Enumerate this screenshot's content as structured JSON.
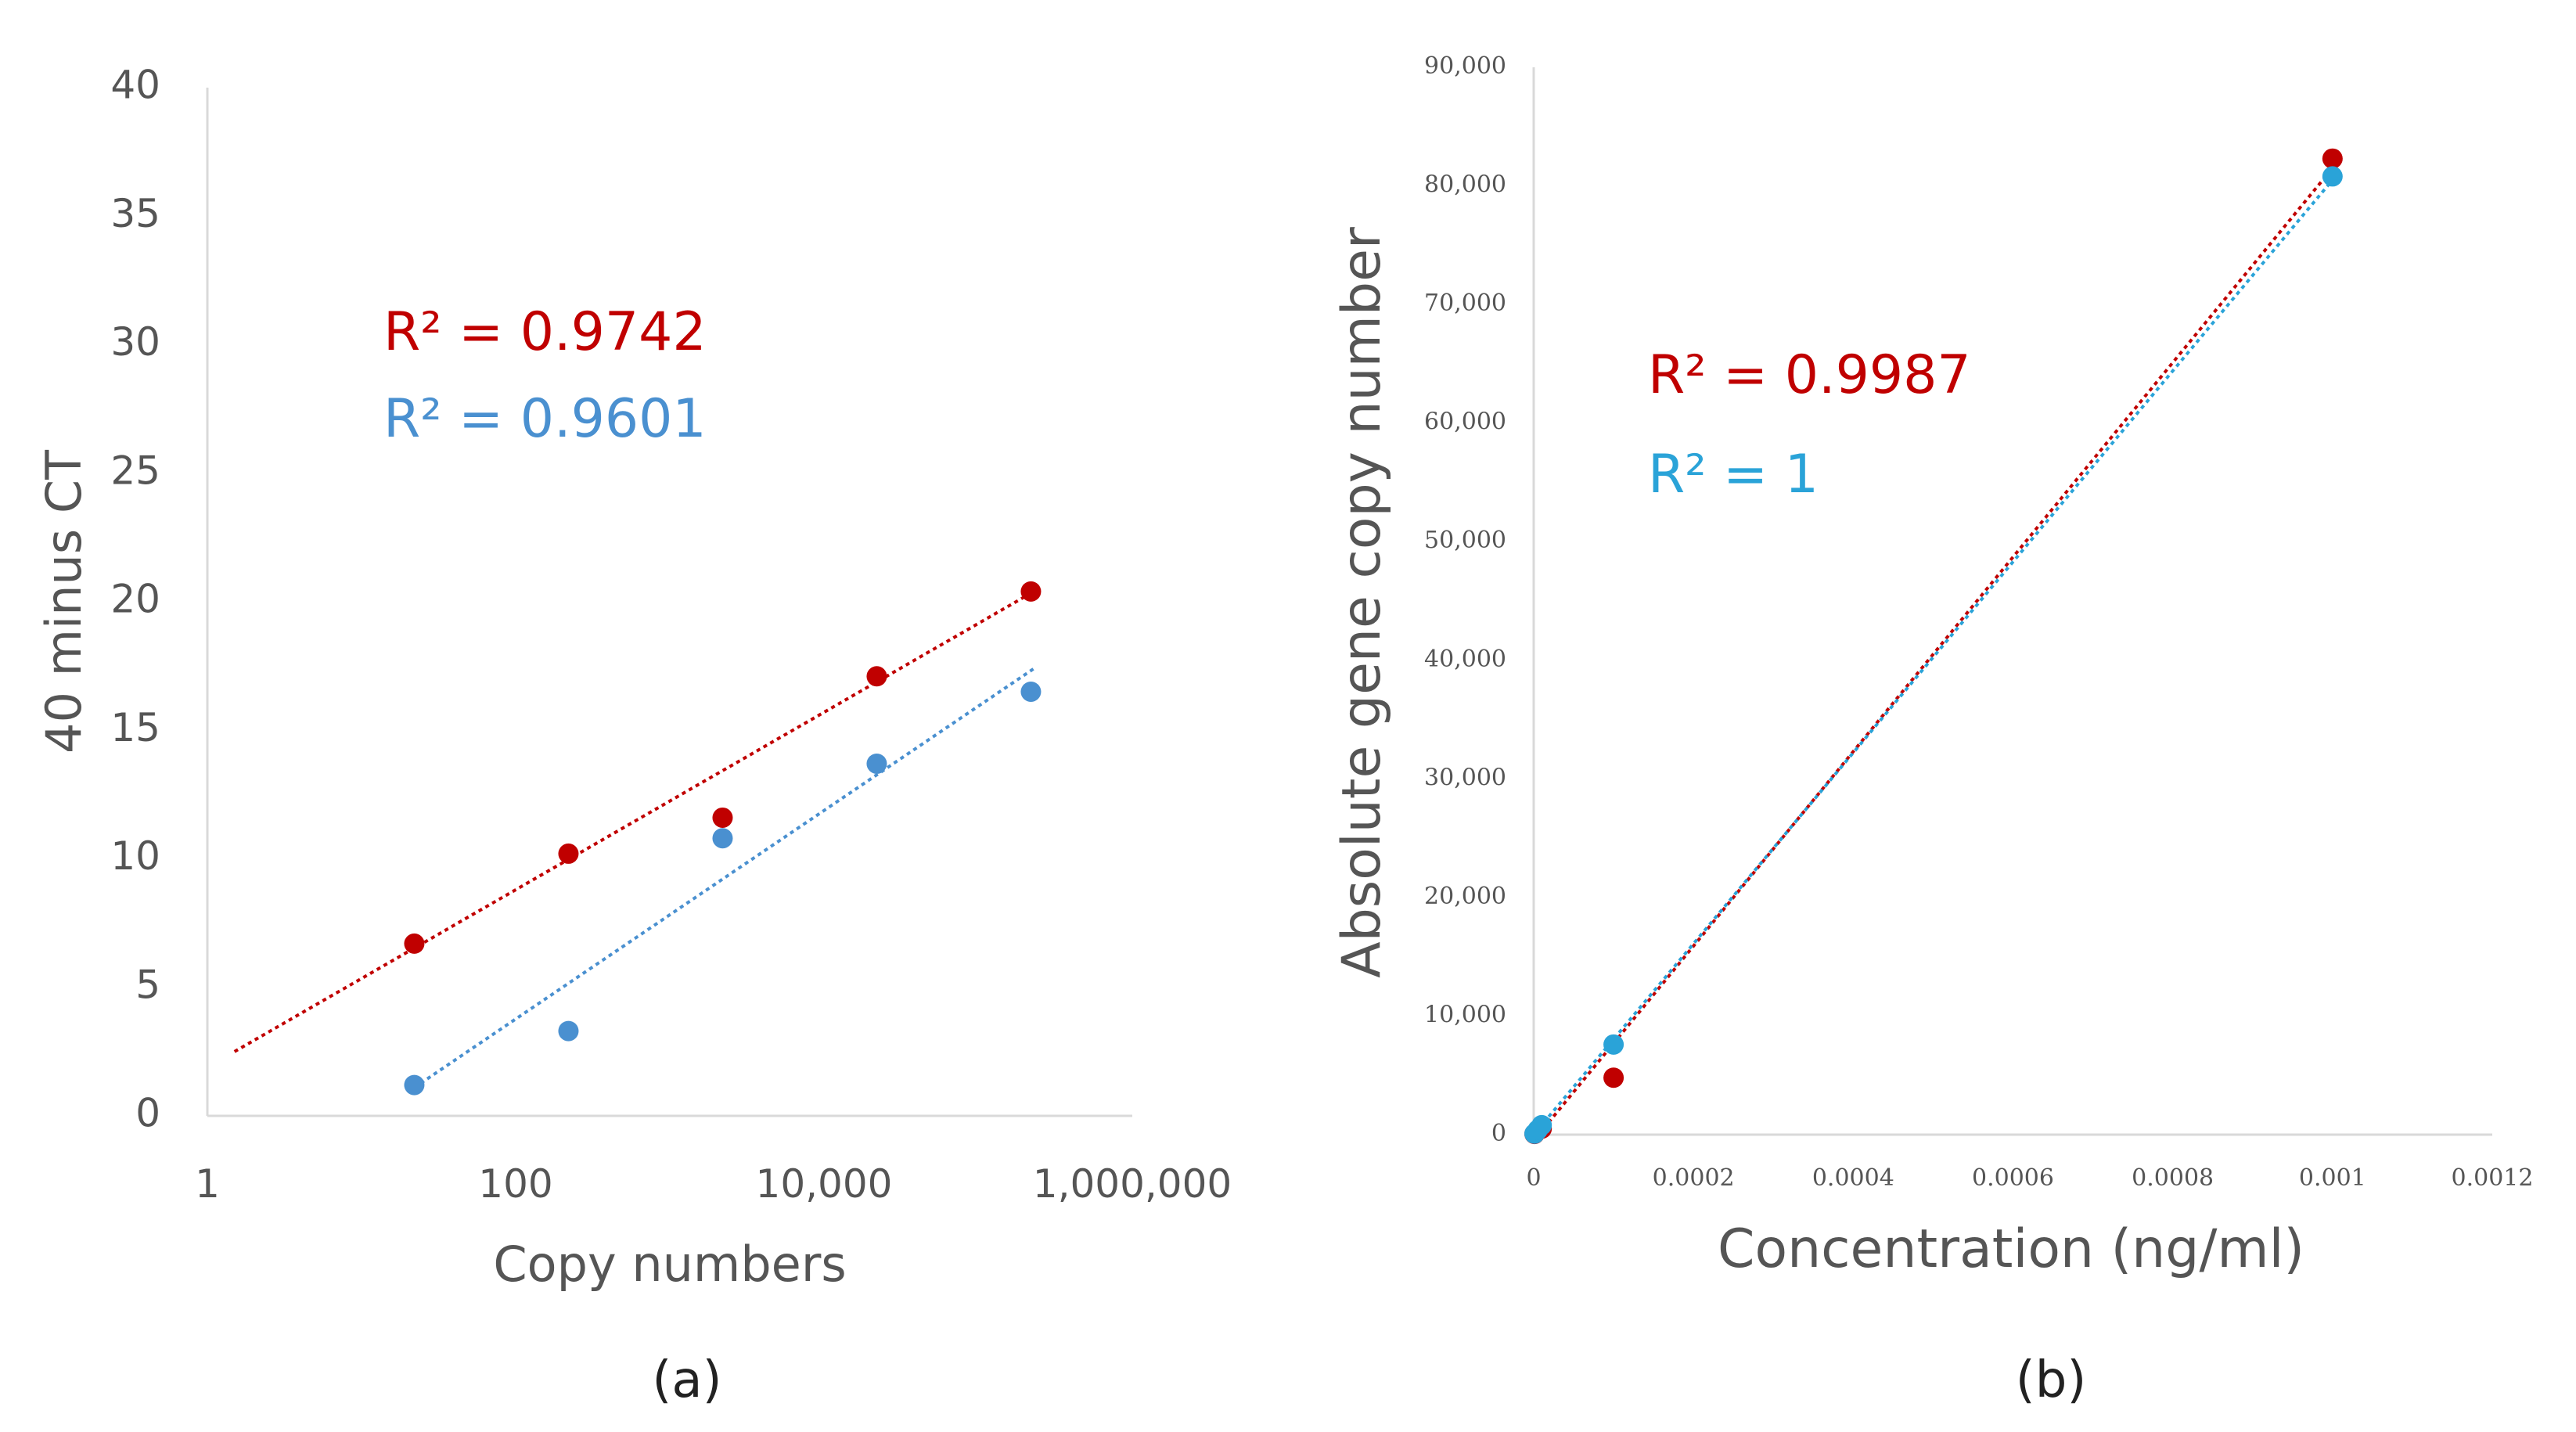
{
  "chart_data": [
    {
      "type": "scatter",
      "panel": "a",
      "caption": "(a)",
      "xlabel": "Copy numbers",
      "ylabel": "40 minus CT",
      "xscale": "log",
      "xlim": [
        1,
        1000000
      ],
      "ylim": [
        0,
        40
      ],
      "xticks": [
        {
          "value": 1,
          "label": "1"
        },
        {
          "value": 100,
          "label": "100"
        },
        {
          "value": 10000,
          "label": "10,000"
        },
        {
          "value": 1000000,
          "label": "1,000,000"
        }
      ],
      "yticks": [
        {
          "value": 0,
          "label": "0"
        },
        {
          "value": 5,
          "label": "5"
        },
        {
          "value": 10,
          "label": "10"
        },
        {
          "value": 15,
          "label": "15"
        },
        {
          "value": 20,
          "label": "20"
        },
        {
          "value": 25,
          "label": "25"
        },
        {
          "value": 30,
          "label": "30"
        },
        {
          "value": 35,
          "label": "35"
        },
        {
          "value": 40,
          "label": "40"
        }
      ],
      "series": [
        {
          "name": "red",
          "color": "#c00000",
          "x": [
            22,
            220,
            2200,
            22000,
            220000
          ],
          "y": [
            6.7,
            10.2,
            11.6,
            17.1,
            20.4
          ],
          "trendline": {
            "x": [
              1.5,
              230000
            ],
            "y": [
              2.5,
              20.4
            ]
          },
          "r2_label": "R² = 0.9742"
        },
        {
          "name": "blue",
          "color": "#4a90d0",
          "x": [
            22,
            220,
            2200,
            22000,
            220000
          ],
          "y": [
            1.2,
            3.3,
            10.8,
            13.7,
            16.5
          ],
          "trendline": {
            "x": [
              22,
              230000
            ],
            "y": [
              1.1,
              17.4
            ]
          },
          "r2_label": "R² = 0.9601"
        }
      ]
    },
    {
      "type": "scatter",
      "panel": "b",
      "caption": "(b)",
      "xlabel": "Concentration (ng/ml)",
      "ylabel": "Absolute gene copy number",
      "xlim": [
        0,
        0.0012
      ],
      "ylim": [
        0,
        90000
      ],
      "xticks": [
        {
          "value": 0,
          "label": "0"
        },
        {
          "value": 0.0002,
          "label": "0.0002"
        },
        {
          "value": 0.0004,
          "label": "0.0004"
        },
        {
          "value": 0.0006,
          "label": "0.0006"
        },
        {
          "value": 0.0008,
          "label": "0.0008"
        },
        {
          "value": 0.001,
          "label": "0.001"
        },
        {
          "value": 0.0012,
          "label": "0.0012"
        }
      ],
      "yticks": [
        {
          "value": 0,
          "label": "0"
        },
        {
          "value": 10000,
          "label": "10,000"
        },
        {
          "value": 20000,
          "label": "20,000"
        },
        {
          "value": 30000,
          "label": "30,000"
        },
        {
          "value": 40000,
          "label": "40,000"
        },
        {
          "value": 50000,
          "label": "50,000"
        },
        {
          "value": 60000,
          "label": "60,000"
        },
        {
          "value": 70000,
          "label": "70,000"
        },
        {
          "value": 80000,
          "label": "80,000"
        },
        {
          "value": 90000,
          "label": "90,000"
        }
      ],
      "series": [
        {
          "name": "red",
          "color": "#c00000",
          "x": [
            1e-06,
            1e-05,
            0.0001,
            0.001
          ],
          "y": [
            60,
            500,
            4800,
            82300
          ],
          "trendline": {
            "x": [
              0,
              0.001
            ],
            "y": [
              -500,
              81500
            ]
          },
          "r2_label": "R² = 0.9987"
        },
        {
          "name": "blue",
          "color": "#2aa3d8",
          "x": [
            1e-06,
            5e-06,
            1e-05,
            0.0001,
            0.001
          ],
          "y": [
            80,
            400,
            800,
            7600,
            80800
          ],
          "trendline": {
            "x": [
              0,
              0.001
            ],
            "y": [
              0,
              80500
            ]
          },
          "r2_label": "R² = 1"
        }
      ]
    }
  ]
}
